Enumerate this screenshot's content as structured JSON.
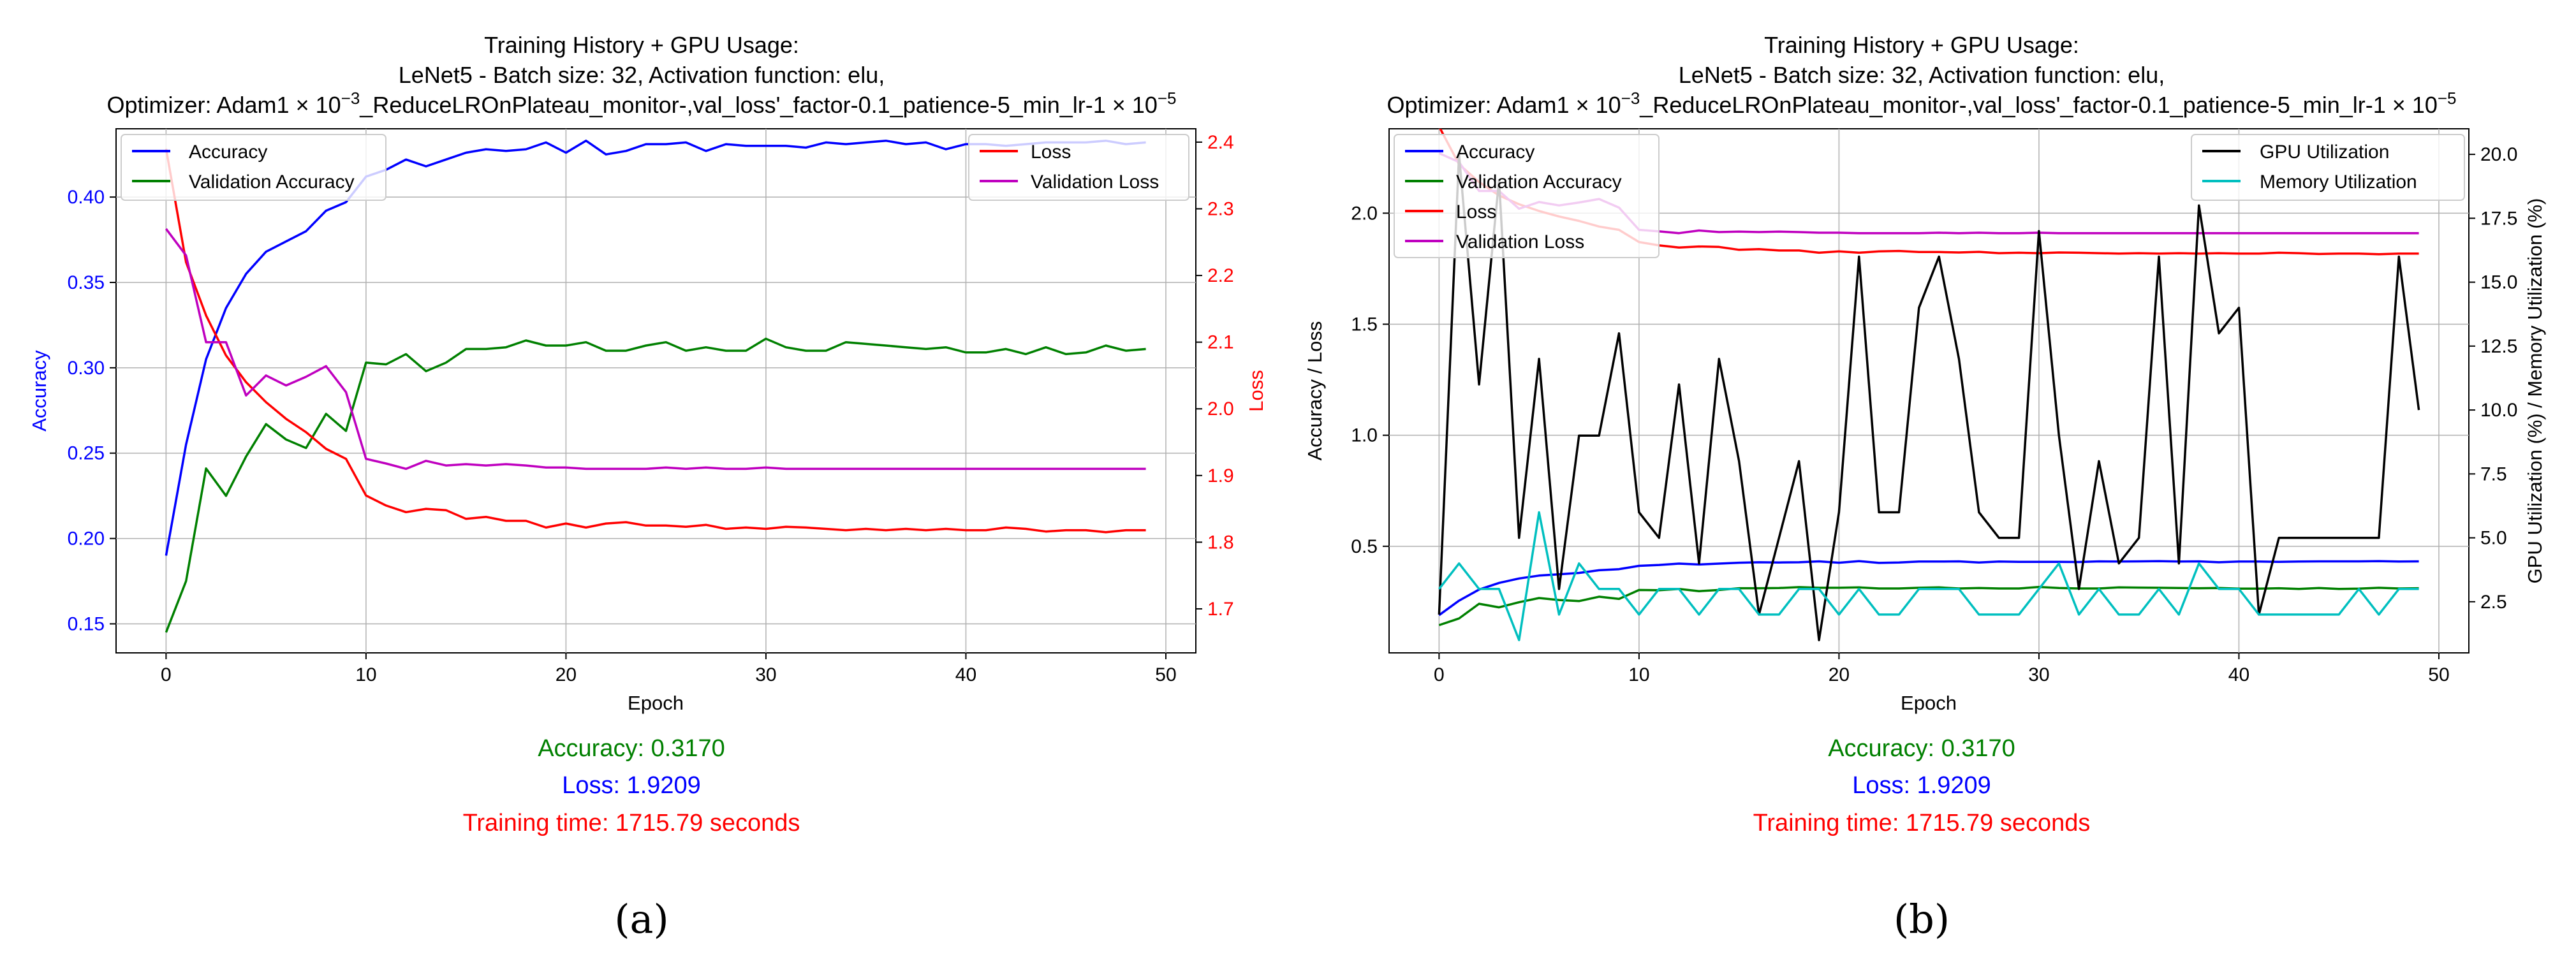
{
  "panels": [
    {
      "label": "(a)",
      "title_lines": [
        "Training History + GPU Usage:",
        "LeNet5 - Batch size: 32, Activation function: elu,"
      ],
      "title_line3": {
        "prefix": "Optimizer: Adam1 × 10",
        "exponent": "−3",
        "middle": "_ReduceLROnPlateau_monitor-,val_loss'_factor-0.1_patience-5_min_lr-1 × 10",
        "exponent2": "−5"
      },
      "xlabel": "Epoch",
      "ylabel_left": "Accuracy",
      "ylabel_right": "Loss",
      "ylabel_left_color": "#0000ff",
      "ylabel_right_color": "#ff0000",
      "x_ticks": [
        "0",
        "10",
        "20",
        "30",
        "40",
        "50"
      ],
      "left_ticks": [
        "0.15",
        "0.20",
        "0.25",
        "0.30",
        "0.35",
        "0.40"
      ],
      "right_ticks": [
        "1.7",
        "1.8",
        "1.9",
        "2.0",
        "2.1",
        "2.2",
        "2.3",
        "2.4"
      ],
      "legend_left": [
        "Accuracy",
        "Validation Accuracy"
      ],
      "legend_right": [
        "Loss",
        "Validation Loss"
      ],
      "summary": {
        "accuracy": "Accuracy: 0.3170",
        "loss": "Loss: 1.9209",
        "time": "Training time: 1715.79 seconds"
      }
    },
    {
      "label": "(b)",
      "title_lines": [
        "Training History + GPU Usage:",
        "LeNet5 - Batch size: 32, Activation function: elu,"
      ],
      "title_line3": {
        "prefix": "Optimizer: Adam1 × 10",
        "exponent": "−3",
        "middle": "_ReduceLROnPlateau_monitor-,val_loss'_factor-0.1_patience-5_min_lr-1 × 10",
        "exponent2": "−5"
      },
      "xlabel": "Epoch",
      "ylabel_left": "Accuracy / Loss",
      "ylabel_right": "GPU Utilization (%) / Memory Utilization (%)",
      "x_ticks": [
        "0",
        "10",
        "20",
        "30",
        "40",
        "50"
      ],
      "left_ticks": [
        "0.5",
        "1.0",
        "1.5",
        "2.0"
      ],
      "right_ticks": [
        "2.5",
        "5.0",
        "7.5",
        "10.0",
        "12.5",
        "15.0",
        "17.5",
        "20.0"
      ],
      "legend_left": [
        "Accuracy",
        "Validation Accuracy",
        "Loss",
        "Validation Loss"
      ],
      "legend_right": [
        "GPU Utilization",
        "Memory Utilization"
      ],
      "summary": {
        "accuracy": "Accuracy: 0.3170",
        "loss": "Loss: 1.9209",
        "time": "Training time: 1715.79 seconds"
      }
    }
  ],
  "colors": {
    "accuracy": "#0000ff",
    "val_accuracy": "#008000",
    "loss": "#ff0000",
    "val_loss": "#bf00bf",
    "gpu": "#000000",
    "memory": "#00bfbf",
    "grid": "#b0b0b0",
    "summary_accuracy": "#008000",
    "summary_loss": "#0000ff",
    "summary_time": "#ff0000"
  },
  "chart_data": [
    {
      "type": "line",
      "title": "Training History + GPU Usage: LeNet5 - Batch size: 32, Activation function: elu, Optimizer: Adam1e-3_ReduceLROnPlateau_monitor-,val_loss'_factor-0.1_patience-5_min_lr-1e-5",
      "xlabel": "Epoch",
      "ylabel": "Accuracy",
      "y2label": "Loss",
      "xlim": [
        -2.5,
        51.5
      ],
      "ylim": [
        0.133,
        0.44
      ],
      "y2lim": [
        1.634,
        2.42
      ],
      "x": [
        0,
        1,
        2,
        3,
        4,
        5,
        6,
        7,
        8,
        9,
        10,
        11,
        12,
        13,
        14,
        15,
        16,
        17,
        18,
        19,
        20,
        21,
        22,
        23,
        24,
        25,
        26,
        27,
        28,
        29,
        30,
        31,
        32,
        33,
        34,
        35,
        36,
        37,
        38,
        39,
        40,
        41,
        42,
        43,
        44,
        45,
        46,
        47,
        48,
        49
      ],
      "series": [
        {
          "name": "Accuracy",
          "axis": "left",
          "values": [
            0.19,
            0.255,
            0.305,
            0.335,
            0.355,
            0.368,
            0.374,
            0.38,
            0.392,
            0.397,
            0.412,
            0.416,
            0.422,
            0.418,
            0.422,
            0.426,
            0.428,
            0.427,
            0.428,
            0.432,
            0.426,
            0.433,
            0.425,
            0.427,
            0.431,
            0.431,
            0.432,
            0.427,
            0.431,
            0.43,
            0.43,
            0.43,
            0.429,
            0.432,
            0.431,
            0.432,
            0.433,
            0.431,
            0.432,
            0.428,
            0.431,
            0.431,
            0.43,
            0.431,
            0.432,
            0.432,
            0.432,
            0.433,
            0.431,
            0.432
          ]
        },
        {
          "name": "Validation Accuracy",
          "axis": "left",
          "values": [
            0.145,
            0.175,
            0.241,
            0.225,
            0.248,
            0.267,
            0.258,
            0.253,
            0.273,
            0.263,
            0.303,
            0.302,
            0.308,
            0.298,
            0.303,
            0.311,
            0.311,
            0.312,
            0.316,
            0.313,
            0.313,
            0.315,
            0.31,
            0.31,
            0.313,
            0.315,
            0.31,
            0.312,
            0.31,
            0.31,
            0.317,
            0.312,
            0.31,
            0.31,
            0.315,
            0.314,
            0.313,
            0.312,
            0.311,
            0.312,
            0.309,
            0.309,
            0.311,
            0.308,
            0.312,
            0.308,
            0.309,
            0.313,
            0.31,
            0.311
          ]
        },
        {
          "name": "Loss",
          "axis": "right",
          "values": [
            2.39,
            2.22,
            2.14,
            2.08,
            2.04,
            2.01,
            1.985,
            1.965,
            1.94,
            1.925,
            1.87,
            1.855,
            1.845,
            1.85,
            1.848,
            1.835,
            1.838,
            1.832,
            1.832,
            1.822,
            1.828,
            1.822,
            1.828,
            1.83,
            1.825,
            1.825,
            1.823,
            1.826,
            1.82,
            1.822,
            1.82,
            1.823,
            1.822,
            1.82,
            1.818,
            1.82,
            1.818,
            1.82,
            1.818,
            1.82,
            1.818,
            1.818,
            1.822,
            1.82,
            1.816,
            1.818,
            1.818,
            1.815,
            1.818,
            1.818
          ]
        },
        {
          "name": "Validation Loss",
          "axis": "right",
          "values": [
            2.27,
            2.23,
            2.1,
            2.1,
            2.02,
            2.05,
            2.035,
            2.048,
            2.064,
            2.025,
            1.925,
            1.918,
            1.91,
            1.922,
            1.915,
            1.917,
            1.915,
            1.917,
            1.915,
            1.912,
            1.912,
            1.91,
            1.91,
            1.91,
            1.91,
            1.912,
            1.91,
            1.912,
            1.91,
            1.91,
            1.912,
            1.91,
            1.91,
            1.91,
            1.91,
            1.91,
            1.91,
            1.91,
            1.91,
            1.91,
            1.91,
            1.91,
            1.91,
            1.91,
            1.91,
            1.91,
            1.91,
            1.91,
            1.91,
            1.91
          ]
        }
      ],
      "legend": [
        "upper-left",
        "upper-right"
      ]
    },
    {
      "type": "line",
      "title": "Training History + GPU Usage: LeNet5 - Batch size: 32, Activation function: elu, Optimizer: Adam1e-3_ReduceLROnPlateau_monitor-,val_loss'_factor-0.1_patience-5_min_lr-1e-5",
      "xlabel": "Epoch",
      "ylabel": "Accuracy / Loss",
      "y2label": "GPU Utilization (%) / Memory Utilization (%)",
      "xlim": [
        -2.5,
        51.5
      ],
      "ylim": [
        0.02,
        2.38
      ],
      "y2lim": [
        0.5,
        21.0
      ],
      "x": [
        0,
        1,
        2,
        3,
        4,
        5,
        6,
        7,
        8,
        9,
        10,
        11,
        12,
        13,
        14,
        15,
        16,
        17,
        18,
        19,
        20,
        21,
        22,
        23,
        24,
        25,
        26,
        27,
        28,
        29,
        30,
        31,
        32,
        33,
        34,
        35,
        36,
        37,
        38,
        39,
        40,
        41,
        42,
        43,
        44,
        45,
        46,
        47,
        48,
        49
      ],
      "series": [
        {
          "name": "Accuracy",
          "axis": "left",
          "values": [
            0.19,
            0.255,
            0.305,
            0.335,
            0.355,
            0.368,
            0.374,
            0.38,
            0.392,
            0.397,
            0.412,
            0.416,
            0.422,
            0.418,
            0.422,
            0.426,
            0.428,
            0.427,
            0.428,
            0.432,
            0.426,
            0.433,
            0.425,
            0.427,
            0.431,
            0.431,
            0.432,
            0.427,
            0.431,
            0.43,
            0.43,
            0.43,
            0.429,
            0.432,
            0.431,
            0.432,
            0.433,
            0.431,
            0.432,
            0.428,
            0.431,
            0.431,
            0.43,
            0.431,
            0.432,
            0.432,
            0.432,
            0.433,
            0.431,
            0.432
          ]
        },
        {
          "name": "Validation Accuracy",
          "axis": "left",
          "values": [
            0.145,
            0.175,
            0.241,
            0.225,
            0.248,
            0.267,
            0.258,
            0.253,
            0.273,
            0.263,
            0.303,
            0.302,
            0.308,
            0.298,
            0.303,
            0.311,
            0.311,
            0.312,
            0.316,
            0.313,
            0.313,
            0.315,
            0.31,
            0.31,
            0.313,
            0.315,
            0.31,
            0.312,
            0.31,
            0.31,
            0.317,
            0.312,
            0.31,
            0.31,
            0.315,
            0.314,
            0.313,
            0.312,
            0.311,
            0.312,
            0.309,
            0.309,
            0.311,
            0.308,
            0.312,
            0.308,
            0.309,
            0.313,
            0.31,
            0.311
          ]
        },
        {
          "name": "Loss",
          "axis": "left",
          "values": [
            2.39,
            2.22,
            2.14,
            2.08,
            2.04,
            2.01,
            1.985,
            1.965,
            1.94,
            1.925,
            1.87,
            1.855,
            1.845,
            1.85,
            1.848,
            1.835,
            1.838,
            1.832,
            1.832,
            1.822,
            1.828,
            1.822,
            1.828,
            1.83,
            1.825,
            1.825,
            1.823,
            1.826,
            1.82,
            1.822,
            1.82,
            1.823,
            1.822,
            1.82,
            1.818,
            1.82,
            1.818,
            1.82,
            1.818,
            1.82,
            1.818,
            1.818,
            1.822,
            1.82,
            1.816,
            1.818,
            1.818,
            1.815,
            1.818,
            1.818
          ]
        },
        {
          "name": "Validation Loss",
          "axis": "left",
          "values": [
            2.27,
            2.23,
            2.1,
            2.1,
            2.02,
            2.05,
            2.035,
            2.048,
            2.064,
            2.025,
            1.925,
            1.918,
            1.91,
            1.922,
            1.915,
            1.917,
            1.915,
            1.917,
            1.915,
            1.912,
            1.912,
            1.91,
            1.91,
            1.91,
            1.91,
            1.912,
            1.91,
            1.912,
            1.91,
            1.91,
            1.912,
            1.91,
            1.91,
            1.91,
            1.91,
            1.91,
            1.91,
            1.91,
            1.91,
            1.91,
            1.91,
            1.91,
            1.91,
            1.91,
            1.91,
            1.91,
            1.91,
            1.91,
            1.91,
            1.91
          ]
        },
        {
          "name": "GPU Utilization",
          "axis": "right",
          "values": [
            2,
            20,
            11,
            19,
            5,
            12,
            3,
            9,
            9,
            13,
            6,
            5,
            11,
            4,
            12,
            8,
            2,
            5,
            8,
            1,
            6,
            16,
            6,
            6,
            14,
            16,
            12,
            6,
            5,
            5,
            17,
            9,
            3,
            8,
            4,
            5,
            16,
            4,
            18,
            13,
            14,
            2,
            5,
            5,
            5,
            5,
            5,
            5,
            16,
            10
          ]
        },
        {
          "name": "Memory Utilization",
          "axis": "right",
          "values": [
            3,
            4,
            3,
            3,
            1,
            6,
            2,
            4,
            3,
            3,
            2,
            3,
            3,
            2,
            3,
            3,
            2,
            2,
            3,
            3,
            2,
            3,
            2,
            2,
            3,
            3,
            3,
            2,
            2,
            2,
            3,
            4,
            2,
            3,
            2,
            2,
            3,
            2,
            4,
            3,
            3,
            2,
            2,
            2,
            2,
            2,
            3,
            2,
            3,
            3
          ]
        }
      ],
      "legend": [
        "upper-left",
        "upper-right"
      ]
    }
  ]
}
